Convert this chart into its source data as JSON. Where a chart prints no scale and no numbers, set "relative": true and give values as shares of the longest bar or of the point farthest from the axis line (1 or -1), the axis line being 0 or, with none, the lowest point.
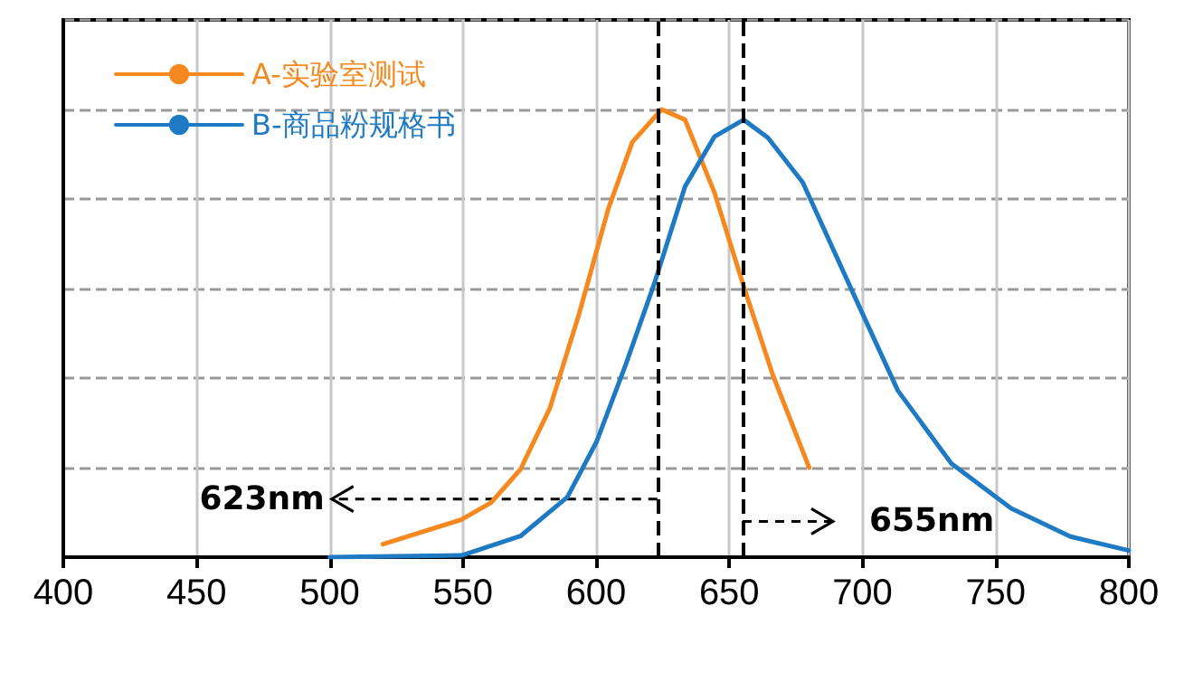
{
  "chart_data": {
    "type": "line",
    "relative": true,
    "xlim": [
      400,
      800
    ],
    "xticks": [
      400,
      450,
      500,
      550,
      600,
      650,
      700,
      750,
      800
    ],
    "tick_labels": "x",
    "grid": true,
    "legend": "top left",
    "marker": "none",
    "line_style": "solid",
    "series": [
      {
        "name": "A-实验室测试",
        "color": "#f5891f",
        "x": [
          520,
          549.5,
          560.6,
          571.6,
          582.6,
          593.6,
          604.6,
          613.6,
          624.6,
          633.4,
          644.4,
          655.4,
          666.4,
          680
        ],
        "values": [
          0.029,
          0.084,
          0.122,
          0.196,
          0.332,
          0.543,
          0.778,
          0.927,
          1.0,
          0.977,
          0.815,
          0.605,
          0.406,
          0.2
        ]
      },
      {
        "name": "B-商品粉规格书",
        "color": "#1f7ac4",
        "x": [
          500,
          549.5,
          571.6,
          589.2,
          600.2,
          611.2,
          622.2,
          633.4,
          644.4,
          655.4,
          664.5,
          677.6,
          697.7,
          713.3,
          733.4,
          755.8,
          778.1,
          800
        ],
        "values": [
          0.0,
          0.004,
          0.047,
          0.134,
          0.258,
          0.431,
          0.617,
          0.828,
          0.939,
          0.977,
          0.937,
          0.837,
          0.574,
          0.372,
          0.209,
          0.109,
          0.046,
          0.015
        ]
      }
    ],
    "ref_lines": [
      {
        "axis": "x",
        "value": 623,
        "color": "#000000",
        "line_style": "dashed"
      },
      {
        "axis": "x",
        "value": 655,
        "color": "#000000",
        "line_style": "dashed"
      }
    ],
    "annotations": [
      {
        "text": "623nm",
        "x": 623,
        "y": 0.13
      },
      {
        "text": "655nm",
        "x": 655,
        "y": 0.08
      }
    ]
  }
}
